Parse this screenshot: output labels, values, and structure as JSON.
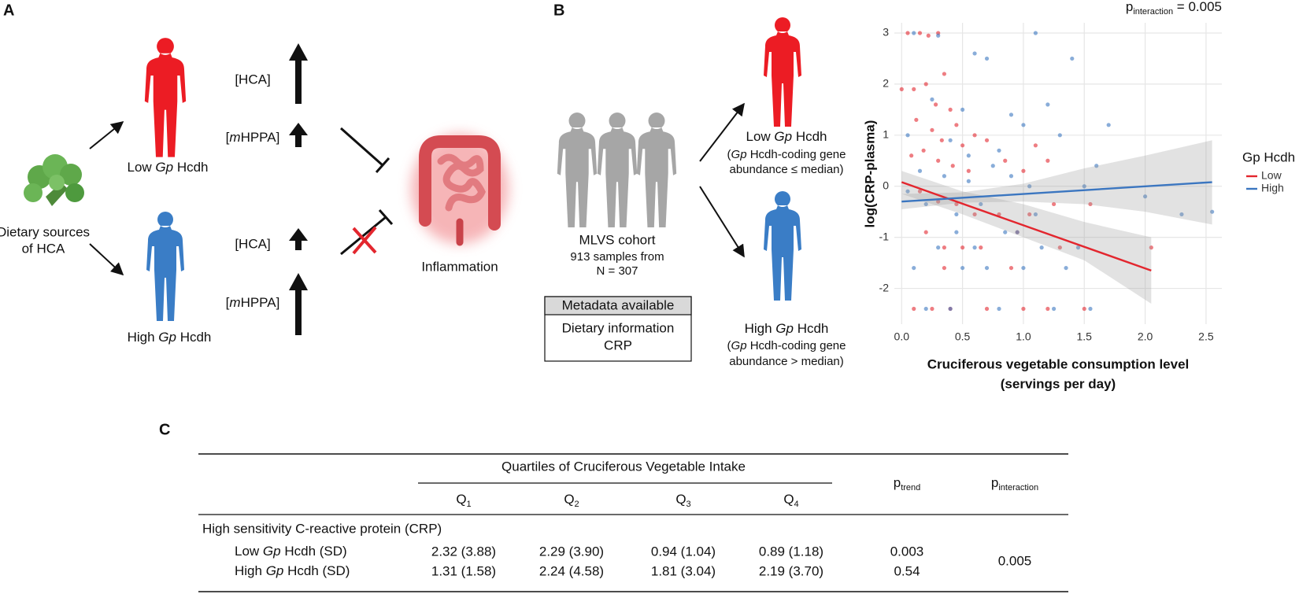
{
  "panel_a": {
    "label": "A",
    "food": [
      "Dietary sources",
      "of HCA"
    ],
    "low_group": [
      "Low ",
      "Gp",
      " Hcdh"
    ],
    "high_group": [
      "High ",
      "Gp",
      " Hcdh"
    ],
    "metabolites": {
      "hca": "[HCA]",
      "mhppa": [
        "[",
        "m",
        "HPPA]"
      ]
    },
    "outcome": "Inflammation"
  },
  "panel_b": {
    "label": "B",
    "cohort": [
      "MLVS cohort",
      "913 samples from",
      "N = 307"
    ],
    "metadata": {
      "header": "Metadata available",
      "items": [
        "Dietary information",
        "CRP"
      ]
    },
    "low_group": {
      "name": [
        "Low ",
        "Gp",
        " Hcdh"
      ],
      "note": [
        [
          "(",
          "Gp",
          " Hcdh-coding gene"
        ],
        "abundance ≤ median)"
      ]
    },
    "high_group": {
      "name": [
        "High ",
        "Gp",
        " Hcdh"
      ],
      "note": [
        [
          "(",
          "Gp",
          " Hcdh-coding gene"
        ],
        "abundance > median)"
      ]
    }
  },
  "chart_data": {
    "type": "scatter",
    "annotation": {
      "p": "p",
      "sub": "interaction",
      "text": " = 0.005"
    },
    "x_label": [
      "Cruciferous vegetable consumption level",
      "(servings per day)"
    ],
    "y_label": "log(CRP-plasma)",
    "legend_title": "Gp Hcdh",
    "xlim": [
      -0.06,
      2.63
    ],
    "ylim": [
      -2.7,
      3.2
    ],
    "xticks": [
      {
        "value": 0,
        "label": "0.0"
      },
      0.5,
      {
        "value": 1,
        "label": "1.0"
      },
      1.5,
      {
        "value": 2,
        "label": "2.0"
      },
      2.5
    ],
    "yticks": [
      -2,
      -1,
      0,
      1,
      2,
      3
    ],
    "grid": true,
    "series": [
      {
        "name": "Low",
        "color": "#e3262e",
        "x": [
          0.05,
          0.15,
          0.22,
          0.3,
          0.35,
          0.1,
          0.2,
          0.28,
          0.4,
          0.45,
          0.12,
          0.25,
          0.33,
          0.5,
          0.6,
          0.08,
          0.18,
          0.3,
          0.42,
          0.55,
          0.7,
          0.85,
          1.0,
          1.1,
          1.2,
          0.15,
          0.3,
          0.45,
          0.6,
          0.8,
          0.95,
          1.05,
          1.25,
          0.2,
          0.35,
          0.5,
          0.65,
          0.9,
          1.3,
          1.55,
          0.1,
          0.25,
          0.4,
          0.7,
          1.0,
          1.2,
          1.5,
          2.05,
          0.0,
          0.35
        ],
        "y": [
          3.0,
          3.0,
          2.95,
          3.0,
          2.2,
          1.9,
          2.0,
          1.6,
          1.5,
          1.2,
          1.3,
          1.1,
          0.9,
          0.8,
          1.0,
          0.6,
          0.7,
          0.5,
          0.4,
          0.3,
          0.9,
          0.5,
          0.3,
          0.8,
          0.5,
          -0.1,
          -0.3,
          -0.35,
          -0.55,
          -0.55,
          -0.9,
          -0.55,
          -0.35,
          -0.9,
          -1.2,
          -1.2,
          -1.2,
          -1.6,
          -1.2,
          -0.35,
          -2.4,
          -2.4,
          -2.4,
          -2.4,
          -2.4,
          -2.4,
          -2.4,
          -1.2,
          1.9,
          -1.6
        ],
        "fit": {
          "x": [
            0,
            2.05
          ],
          "y": [
            0.08,
            -1.65
          ]
        },
        "ci": {
          "x": [
            0,
            0.5,
            1,
            1.5,
            2.05
          ],
          "lower": [
            -0.15,
            -0.55,
            -1.0,
            -1.45,
            -2.3
          ],
          "upper": [
            0.3,
            -0.1,
            -0.35,
            -0.7,
            -1.0
          ]
        }
      },
      {
        "name": "High",
        "color": "#3b76c0",
        "x": [
          0.1,
          0.3,
          0.6,
          0.7,
          1.1,
          1.4,
          0.25,
          0.5,
          0.9,
          1.2,
          0.05,
          0.4,
          0.8,
          1.0,
          1.3,
          1.7,
          0.15,
          0.35,
          0.55,
          0.75,
          1.05,
          1.5,
          2.0,
          2.3,
          2.55,
          0.2,
          0.45,
          0.65,
          0.85,
          1.1,
          0.3,
          0.6,
          0.95,
          1.15,
          1.45,
          0.1,
          0.5,
          0.7,
          1.0,
          1.35,
          0.2,
          0.4,
          0.8,
          1.25,
          1.55,
          0.05,
          0.55,
          1.6,
          0.9,
          0.45
        ],
        "y": [
          3.0,
          2.95,
          2.6,
          2.5,
          3.0,
          2.5,
          1.7,
          1.5,
          1.4,
          1.6,
          1.0,
          0.9,
          0.7,
          1.2,
          1.0,
          1.2,
          0.3,
          0.2,
          0.1,
          0.4,
          0.0,
          0.0,
          -0.2,
          -0.55,
          -0.5,
          -0.35,
          -0.55,
          -0.35,
          -0.9,
          -0.55,
          -1.2,
          -1.2,
          -0.9,
          -1.2,
          -1.2,
          -1.6,
          -1.6,
          -1.6,
          -1.6,
          -1.6,
          -2.4,
          -2.4,
          -2.4,
          -2.4,
          -2.4,
          -0.1,
          0.6,
          0.4,
          0.2,
          -0.9
        ],
        "fit": {
          "x": [
            0,
            2.55
          ],
          "y": [
            -0.3,
            0.08
          ]
        },
        "ci": {
          "x": [
            0,
            0.5,
            1,
            1.5,
            2.0,
            2.55
          ],
          "lower": [
            -0.45,
            -0.32,
            -0.3,
            -0.35,
            -0.5,
            -0.75
          ],
          "upper": [
            -0.15,
            -0.12,
            0.05,
            0.35,
            0.6,
            0.9
          ]
        }
      }
    ]
  },
  "panel_c": {
    "label": "C",
    "table": {
      "group_header": "Quartiles of Cruciferous Vegetable Intake",
      "quartiles": [
        [
          "Q",
          "1"
        ],
        [
          "Q",
          "2"
        ],
        [
          "Q",
          "3"
        ],
        [
          "Q",
          "4"
        ]
      ],
      "p_trend": [
        "p",
        "trend"
      ],
      "p_interaction": [
        "p",
        "interaction"
      ],
      "section": "High sensitivity C-reactive protein (CRP)",
      "rows": [
        {
          "label": [
            "Low ",
            "Gp",
            " Hcdh (SD)"
          ],
          "cells": [
            "2.32 (3.88)",
            "2.29 (3.90)",
            "0.94 (1.04)",
            "0.89 (1.18)"
          ],
          "p_trend": "0.003"
        },
        {
          "label": [
            "High ",
            "Gp",
            " Hcdh (SD)"
          ],
          "cells": [
            "1.31 (1.58)",
            "2.24 (4.58)",
            "1.81 (3.04)",
            "2.19 (3.70)"
          ],
          "p_trend": "0.54"
        }
      ],
      "p_interaction_value": "0.005"
    }
  }
}
